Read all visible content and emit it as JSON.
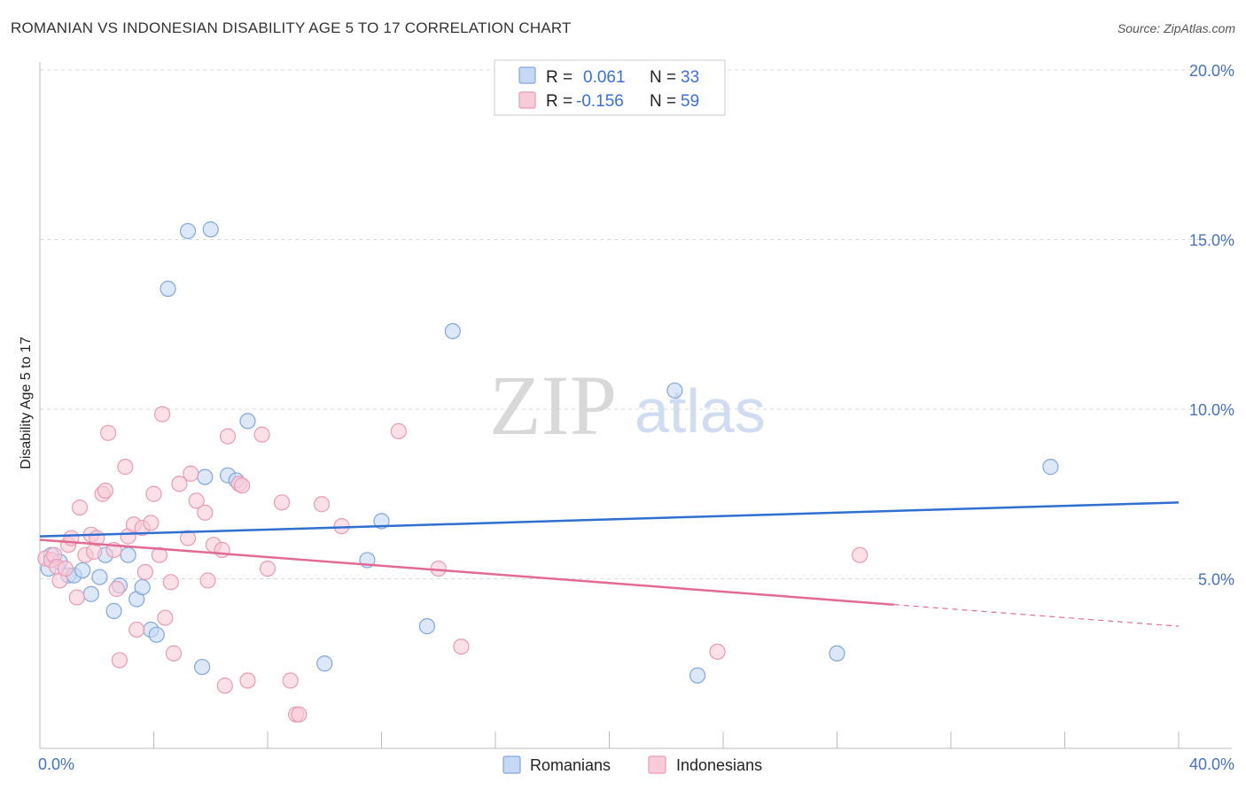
{
  "chart_data": {
    "type": "scatter",
    "title": "ROMANIAN VS INDONESIAN DISABILITY AGE 5 TO 17 CORRELATION CHART",
    "source": "Source: ZipAtlas.com",
    "xlabel": "",
    "ylabel": "Disability Age 5 to 17",
    "xlim": [
      0,
      40
    ],
    "ylim": [
      0,
      20
    ],
    "x_tick_labels": [
      "0.0%",
      "40.0%"
    ],
    "y_ticks": [
      5,
      10,
      15,
      20
    ],
    "y_tick_labels": [
      "5.0%",
      "10.0%",
      "15.0%",
      "20.0%"
    ],
    "grid": true,
    "watermark": {
      "zip": "ZIP",
      "atlas": "atlas"
    },
    "colors": {
      "romanians_fill": "#c5d8f4",
      "romanians_stroke": "#7fa6df",
      "romanians_line": "#2e6fcf",
      "indonesians_fill": "#f8cbd8",
      "indonesians_stroke": "#eb9ab3",
      "indonesians_line": "#e26b93"
    },
    "legend": [
      {
        "r_label": "R = ",
        "r_value": "0.061",
        "n_label": "N = ",
        "n_value": "33"
      },
      {
        "r_label": "R = ",
        "r_value": "-0.156",
        "n_label": "N = ",
        "n_value": "59"
      }
    ],
    "series": [
      {
        "name": "Romanians",
        "trend": {
          "x": [
            0,
            40
          ],
          "y": [
            6.25,
            7.25
          ]
        },
        "points": [
          [
            0.3,
            5.3
          ],
          [
            0.4,
            5.7
          ],
          [
            0.7,
            5.5
          ],
          [
            1.0,
            5.1
          ],
          [
            1.2,
            5.1
          ],
          [
            1.5,
            5.25
          ],
          [
            1.8,
            4.55
          ],
          [
            2.1,
            5.05
          ],
          [
            2.3,
            5.7
          ],
          [
            2.6,
            4.05
          ],
          [
            2.8,
            4.8
          ],
          [
            3.1,
            5.7
          ],
          [
            3.4,
            4.4
          ],
          [
            3.6,
            4.75
          ],
          [
            3.9,
            3.5
          ],
          [
            4.1,
            3.35
          ],
          [
            4.5,
            13.55
          ],
          [
            5.2,
            15.25
          ],
          [
            5.7,
            2.4
          ],
          [
            5.8,
            8.0
          ],
          [
            6.0,
            15.3
          ],
          [
            6.6,
            8.05
          ],
          [
            6.9,
            7.9
          ],
          [
            7.3,
            9.65
          ],
          [
            10.0,
            2.5
          ],
          [
            11.5,
            5.55
          ],
          [
            12.0,
            6.7
          ],
          [
            13.6,
            3.6
          ],
          [
            14.5,
            12.3
          ],
          [
            22.3,
            10.55
          ],
          [
            23.1,
            2.15
          ],
          [
            28.0,
            2.8
          ],
          [
            35.5,
            8.3
          ]
        ]
      },
      {
        "name": "Indonesians",
        "trend": {
          "x": [
            0,
            40
          ],
          "y": [
            6.15,
            3.6
          ],
          "solid_until": 30
        },
        "points": [
          [
            0.2,
            5.6
          ],
          [
            0.4,
            5.55
          ],
          [
            0.5,
            5.7
          ],
          [
            0.6,
            5.35
          ],
          [
            0.7,
            4.95
          ],
          [
            0.9,
            5.3
          ],
          [
            1.0,
            6.0
          ],
          [
            1.1,
            6.2
          ],
          [
            1.3,
            4.45
          ],
          [
            1.4,
            7.1
          ],
          [
            1.6,
            5.7
          ],
          [
            1.8,
            6.3
          ],
          [
            1.9,
            5.8
          ],
          [
            2.0,
            6.2
          ],
          [
            2.2,
            7.5
          ],
          [
            2.3,
            7.6
          ],
          [
            2.4,
            9.3
          ],
          [
            2.6,
            5.85
          ],
          [
            2.7,
            4.7
          ],
          [
            2.8,
            2.6
          ],
          [
            3.0,
            8.3
          ],
          [
            3.1,
            6.25
          ],
          [
            3.3,
            6.6
          ],
          [
            3.4,
            3.5
          ],
          [
            3.6,
            6.5
          ],
          [
            3.7,
            5.2
          ],
          [
            3.9,
            6.65
          ],
          [
            4.0,
            7.5
          ],
          [
            4.2,
            5.7
          ],
          [
            4.3,
            9.85
          ],
          [
            4.4,
            3.85
          ],
          [
            4.6,
            4.9
          ],
          [
            4.7,
            2.8
          ],
          [
            4.9,
            7.8
          ],
          [
            5.2,
            6.2
          ],
          [
            5.3,
            8.1
          ],
          [
            5.5,
            7.3
          ],
          [
            5.8,
            6.95
          ],
          [
            5.9,
            4.95
          ],
          [
            6.1,
            6.0
          ],
          [
            6.4,
            5.85
          ],
          [
            6.5,
            1.85
          ],
          [
            6.6,
            9.2
          ],
          [
            7.0,
            7.8
          ],
          [
            7.1,
            7.75
          ],
          [
            7.3,
            2.0
          ],
          [
            7.8,
            9.25
          ],
          [
            8.0,
            5.3
          ],
          [
            8.5,
            7.25
          ],
          [
            8.8,
            2.0
          ],
          [
            9.0,
            1.0
          ],
          [
            9.1,
            1.0
          ],
          [
            9.9,
            7.2
          ],
          [
            10.6,
            6.55
          ],
          [
            12.6,
            9.35
          ],
          [
            14.0,
            5.3
          ],
          [
            14.8,
            3.0
          ],
          [
            23.8,
            2.85
          ],
          [
            28.8,
            5.7
          ]
        ]
      }
    ]
  }
}
